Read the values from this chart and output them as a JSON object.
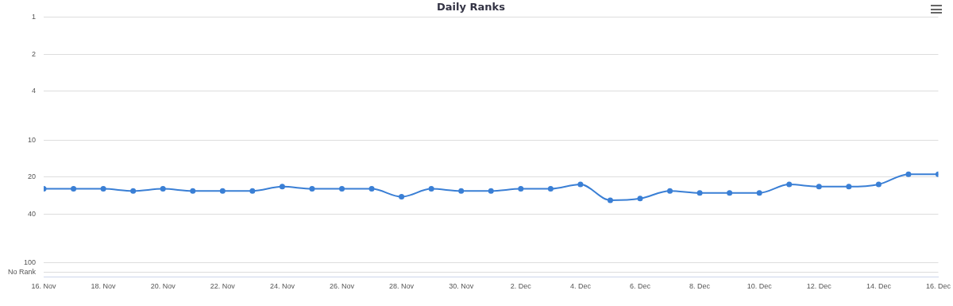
{
  "chart_data": {
    "type": "line",
    "title": "Daily Ranks",
    "x": [
      "--11-16",
      "--11-17",
      "--11-18",
      "--11-19",
      "--11-20",
      "--11-21",
      "--11-22",
      "--11-23",
      "--11-24",
      "--11-25",
      "--11-26",
      "--11-27",
      "--11-28",
      "--11-29",
      "--11-30",
      "--12-01",
      "--12-02",
      "--12-03",
      "--12-04",
      "--12-05",
      "--12-06",
      "--12-07",
      "--12-08",
      "--12-09",
      "--12-10",
      "--12-11",
      "--12-12",
      "--12-13",
      "--12-14",
      "--12-15",
      "--12-16"
    ],
    "series": [
      {
        "color": "#3a7fd5",
        "values": [
          25,
          25,
          25,
          26,
          25,
          26,
          26,
          26,
          24,
          25,
          25,
          25,
          29,
          25,
          26,
          26,
          25,
          25,
          23,
          31,
          30,
          26,
          27,
          27,
          27,
          23,
          24,
          24,
          23,
          19,
          19
        ]
      }
    ],
    "xlim": [
      "--11-16",
      "--12-16"
    ],
    "xticks": [
      {
        "value": "--11-16",
        "label": "16. Nov"
      },
      {
        "value": "--11-18",
        "label": "18. Nov"
      },
      {
        "value": "--11-20",
        "label": "20. Nov"
      },
      {
        "value": "--11-22",
        "label": "22. Nov"
      },
      {
        "value": "--11-24",
        "label": "24. Nov"
      },
      {
        "value": "--11-26",
        "label": "26. Nov"
      },
      {
        "value": "--11-28",
        "label": "28. Nov"
      },
      {
        "value": "--11-30",
        "label": "30. Nov"
      },
      {
        "value": "--12-02",
        "label": "2. Dec"
      },
      {
        "value": "--12-04",
        "label": "4. Dec"
      },
      {
        "value": "--12-06",
        "label": "6. Dec"
      },
      {
        "value": "--12-08",
        "label": "8. Dec"
      },
      {
        "value": "--12-10",
        "label": "10. Dec"
      },
      {
        "value": "--12-12",
        "label": "12. Dec"
      },
      {
        "value": "--12-14",
        "label": "14. Dec"
      },
      {
        "value": "--12-16",
        "label": "16. Dec"
      }
    ],
    "ylim": [
      130,
      1
    ],
    "yticks": [
      1,
      2,
      4,
      10,
      20,
      40,
      100,
      {
        "value": 120,
        "label": "No Rank"
      }
    ],
    "log": "y",
    "grid": "y",
    "marker": "circle",
    "legend": false
  }
}
